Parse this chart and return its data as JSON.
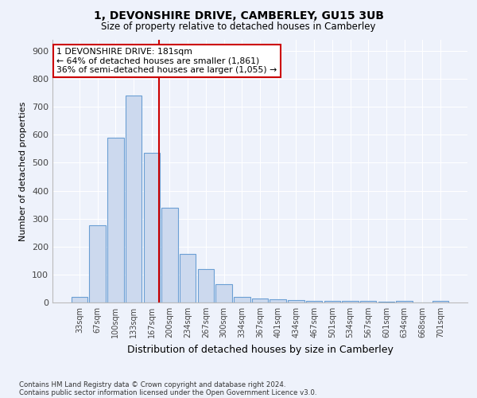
{
  "title": "1, DEVONSHIRE DRIVE, CAMBERLEY, GU15 3UB",
  "subtitle": "Size of property relative to detached houses in Camberley",
  "xlabel": "Distribution of detached houses by size in Camberley",
  "ylabel": "Number of detached properties",
  "bin_labels": [
    "33sqm",
    "67sqm",
    "100sqm",
    "133sqm",
    "167sqm",
    "200sqm",
    "234sqm",
    "267sqm",
    "300sqm",
    "334sqm",
    "367sqm",
    "401sqm",
    "434sqm",
    "467sqm",
    "501sqm",
    "534sqm",
    "567sqm",
    "601sqm",
    "634sqm",
    "668sqm",
    "701sqm"
  ],
  "bar_heights": [
    20,
    275,
    590,
    740,
    535,
    340,
    175,
    120,
    65,
    20,
    15,
    10,
    8,
    7,
    7,
    5,
    5,
    3,
    5,
    0,
    5
  ],
  "bar_color": "#ccd9ee",
  "bar_edge_color": "#6b9fd4",
  "background_color": "#eef2fb",
  "grid_color": "#ffffff",
  "property_line_color": "#cc0000",
  "annotation_text_line1": "1 DEVONSHIRE DRIVE: 181sqm",
  "annotation_text_line2": "← 64% of detached houses are smaller (1,861)",
  "annotation_text_line3": "36% of semi-detached houses are larger (1,055) →",
  "annotation_box_color": "#ffffff",
  "annotation_box_edge": "#cc0000",
  "ylim": [
    0,
    940
  ],
  "yticks": [
    0,
    100,
    200,
    300,
    400,
    500,
    600,
    700,
    800,
    900
  ],
  "footnote1": "Contains HM Land Registry data © Crown copyright and database right 2024.",
  "footnote2": "Contains public sector information licensed under the Open Government Licence v3.0."
}
